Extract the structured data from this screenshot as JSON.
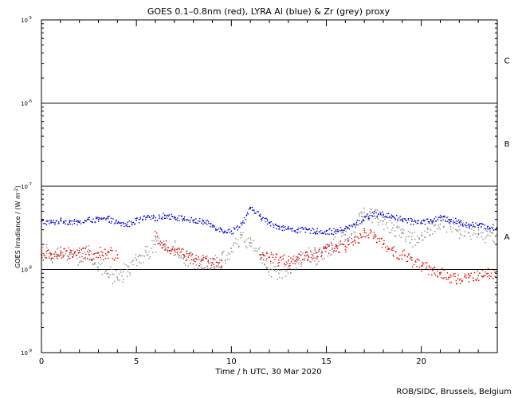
{
  "chart_data": {
    "type": "scatter",
    "title": "GOES 0.1–0.8nm (red), LYRA Al (blue) & Zr (grey) proxy",
    "xlabel": "Time / h UTC, 30 Mar 2020",
    "ylabel_main": "GOES Irradiance / (W m",
    "ylabel_sup": "-2",
    "ylabel_close": ")",
    "credit": "ROB/SIDC, Brussels, Belgium",
    "xlim": [
      0,
      24
    ],
    "ylim": [
      1e-09,
      1e-05
    ],
    "log_y": true,
    "x_ticks": [
      {
        "value": 0,
        "label": "0"
      },
      {
        "value": 5,
        "label": "5"
      },
      {
        "value": 10,
        "label": "10"
      },
      {
        "value": 15,
        "label": "15"
      },
      {
        "value": 20,
        "label": "20"
      }
    ],
    "y_ticks": [
      {
        "exp": -9,
        "base": "10",
        "sup": "-9"
      },
      {
        "exp": -8,
        "base": "10",
        "sup": "-8"
      },
      {
        "exp": -7,
        "base": "10",
        "sup": "-7"
      },
      {
        "exp": -6,
        "base": "10",
        "sup": "-6"
      },
      {
        "exp": -5,
        "base": "10",
        "sup": "-5"
      }
    ],
    "class_lines": [
      1e-08,
      1e-07,
      1e-06
    ],
    "class_labels": [
      {
        "label": "A",
        "value": 2.5e-08
      },
      {
        "label": "B",
        "value": 3.3e-07
      },
      {
        "label": "C",
        "value": 3.3e-06
      }
    ],
    "series": [
      {
        "name": "LYRA Al (blue)",
        "color": "#0000cc",
        "x": [
          0,
          0.5,
          1,
          1.5,
          2,
          2.5,
          3,
          3.5,
          4,
          4.5,
          5,
          5.5,
          6,
          6.5,
          7,
          7.5,
          8,
          8.5,
          9,
          9.5,
          10,
          10.5,
          11,
          11.5,
          12,
          12.5,
          13,
          13.5,
          14,
          14.5,
          15,
          15.5,
          16,
          16.5,
          17,
          17.5,
          18,
          18.5,
          19,
          19.5,
          20,
          20.5,
          21,
          21.5,
          22,
          22.5,
          23,
          23.5,
          24
        ],
        "y": [
          3.8e-08,
          3.7e-08,
          3.9e-08,
          3.8e-08,
          3.7e-08,
          4e-08,
          4e-08,
          4.1e-08,
          3.6e-08,
          3.5e-08,
          3.9e-08,
          4.2e-08,
          4.2e-08,
          4.5e-08,
          4.3e-08,
          4.1e-08,
          3.9e-08,
          3.8e-08,
          3.4e-08,
          3e-08,
          2.9e-08,
          3.6e-08,
          5.4e-08,
          4.4e-08,
          3.6e-08,
          3.3e-08,
          3.1e-08,
          3e-08,
          3e-08,
          2.9e-08,
          2.9e-08,
          2.9e-08,
          3.1e-08,
          3.5e-08,
          4.3e-08,
          4.7e-08,
          4.6e-08,
          4.4e-08,
          4e-08,
          3.8e-08,
          3.8e-08,
          3.9e-08,
          4.2e-08,
          4e-08,
          3.7e-08,
          3.5e-08,
          3.4e-08,
          3.3e-08,
          3.2e-08
        ]
      },
      {
        "name": "Zr (grey)",
        "color": "#8c8c8c",
        "x": [
          0,
          0.5,
          1,
          1.5,
          2,
          2.5,
          3,
          3.5,
          4,
          4.5,
          5,
          5.5,
          6,
          6.5,
          7,
          7.5,
          8,
          8.5,
          9,
          9.5,
          10,
          10.5,
          11,
          11.5,
          12,
          12.5,
          13,
          13.5,
          14,
          14.5,
          15,
          15.5,
          16,
          16.5,
          17,
          17.5,
          18,
          18.5,
          19,
          19.5,
          20,
          20.5,
          21,
          21.5,
          22,
          22.5,
          23,
          23.5,
          24
        ],
        "y": [
          1.7e-08,
          1.5e-08,
          1.6e-08,
          1.5e-08,
          1.4e-08,
          1.6e-08,
          1.2e-08,
          9e-09,
          8e-09,
          1e-08,
          1.3e-08,
          1.6e-08,
          2e-08,
          1.9e-08,
          1.8e-08,
          1.4e-08,
          1.3e-08,
          1.3e-08,
          1.2e-08,
          1.3e-08,
          1.8e-08,
          2.4e-08,
          2.1e-08,
          1.5e-08,
          1e-08,
          9e-09,
          1.1e-08,
          1.3e-08,
          1.6e-08,
          1.4e-08,
          1.8e-08,
          2e-08,
          2.6e-08,
          3.4e-08,
          4.8e-08,
          4.4e-08,
          3.8e-08,
          3.2e-08,
          2.8e-08,
          2.3e-08,
          2.6e-08,
          3e-08,
          3.5e-08,
          3.6e-08,
          3e-08,
          2.8e-08,
          2.7e-08,
          2.6e-08,
          2.5e-08
        ]
      },
      {
        "name": "GOES 0.1-0.8nm (red)",
        "color": "#dd0000",
        "x": [
          0,
          0.5,
          1,
          1.5,
          2,
          2.5,
          3,
          3.5,
          4,
          4.5,
          5,
          5.5,
          6,
          6.5,
          7,
          7.5,
          8,
          8.5,
          9,
          9.5,
          10,
          10.5,
          11,
          11.5,
          12,
          12.5,
          13,
          13.5,
          14,
          14.5,
          15,
          15.5,
          16,
          16.5,
          17,
          17.5,
          18,
          18.5,
          19,
          19.5,
          20,
          20.5,
          21,
          21.5,
          22,
          22.5,
          23,
          23.5,
          24
        ],
        "y": [
          1.5e-08,
          1.5e-08,
          1.5e-08,
          1.6e-08,
          1.6e-08,
          1.5e-08,
          1.6e-08,
          1.6e-08,
          1.5e-08,
          null,
          null,
          null,
          2.5e-08,
          2e-08,
          1.7e-08,
          1.5e-08,
          1.3e-08,
          1.3e-08,
          1.2e-08,
          1.1e-08,
          null,
          null,
          null,
          1.5e-08,
          1.4e-08,
          1.3e-08,
          1.3e-08,
          1.4e-08,
          1.5e-08,
          1.6e-08,
          1.8e-08,
          1.9e-08,
          1.9e-08,
          2.2e-08,
          2.8e-08,
          2.5e-08,
          2e-08,
          1.7e-08,
          1.5e-08,
          1.3e-08,
          1.1e-08,
          1e-08,
          9e-09,
          8e-09,
          7.5e-09,
          8e-09,
          8.5e-09,
          9e-09,
          9.5e-09
        ]
      }
    ]
  }
}
